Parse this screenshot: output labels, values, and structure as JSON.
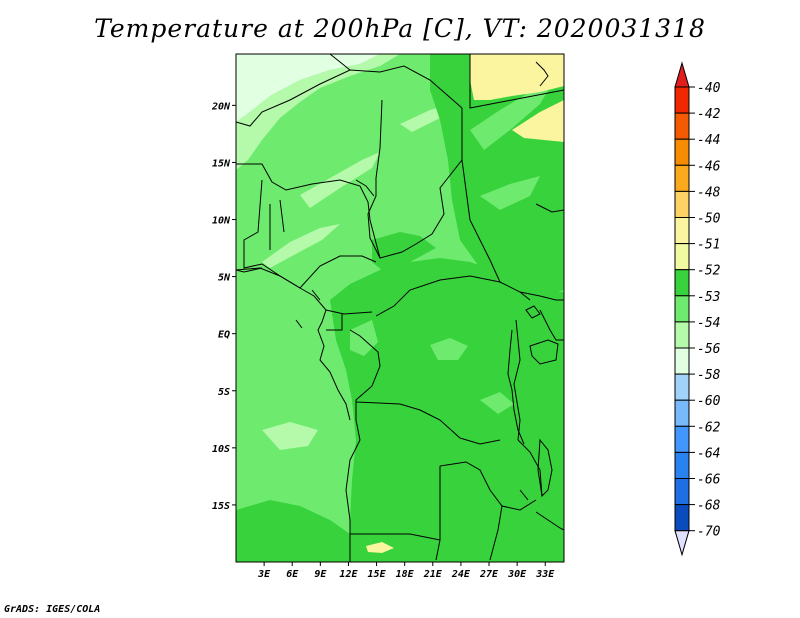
{
  "title": "Temperature at 200hPa [C], VT: 2020031318",
  "credit": "GrADS: IGES/COLA",
  "map": {
    "lon_range": [
      0,
      35
    ],
    "lat_range": [
      -20,
      24.5
    ],
    "lon_ticks": [
      "3E",
      "6E",
      "9E",
      "12E",
      "15E",
      "18E",
      "21E",
      "24E",
      "27E",
      "30E",
      "33E"
    ],
    "lon_tick_values": [
      3,
      6,
      9,
      12,
      15,
      18,
      21,
      24,
      27,
      30,
      33
    ],
    "lat_ticks": [
      "20N",
      "15N",
      "10N",
      "5N",
      "EQ",
      "5S",
      "10S",
      "15S"
    ],
    "lat_tick_values": [
      20,
      15,
      10,
      5,
      0,
      -5,
      -10,
      -15
    ]
  },
  "colorbar": {
    "labels": [
      "-40",
      "-42",
      "-44",
      "-46",
      "-48",
      "-50",
      "-51",
      "-52",
      "-53",
      "-54",
      "-56",
      "-58",
      "-60",
      "-62",
      "-64",
      "-66",
      "-68",
      "-70"
    ],
    "colors": [
      "#f02800",
      "#f55a00",
      "#f88c00",
      "#fbaa1e",
      "#fcd264",
      "#fbf5a0",
      "#f0faa0",
      "#37d23c",
      "#6eeb6e",
      "#b4faaa",
      "#e1ffe1",
      "#a0d2fa",
      "#78b9fa",
      "#4196ff",
      "#2882f0",
      "#1e6ee6",
      "#0a4bbe",
      "#0a1e78"
    ],
    "top_arrow_color": "#e01e1e",
    "bottom_arrow_color": "#e0e0ff"
  },
  "field_colors": {
    "le_minus52": "#37d23c",
    "minus52_53": "#6eeb6e",
    "minus53_54": "#b4faaa",
    "minus54_56": "#e1ffe1",
    "minus51_50": "#f0faa0",
    "minus50_48": "#fbf5a0"
  }
}
